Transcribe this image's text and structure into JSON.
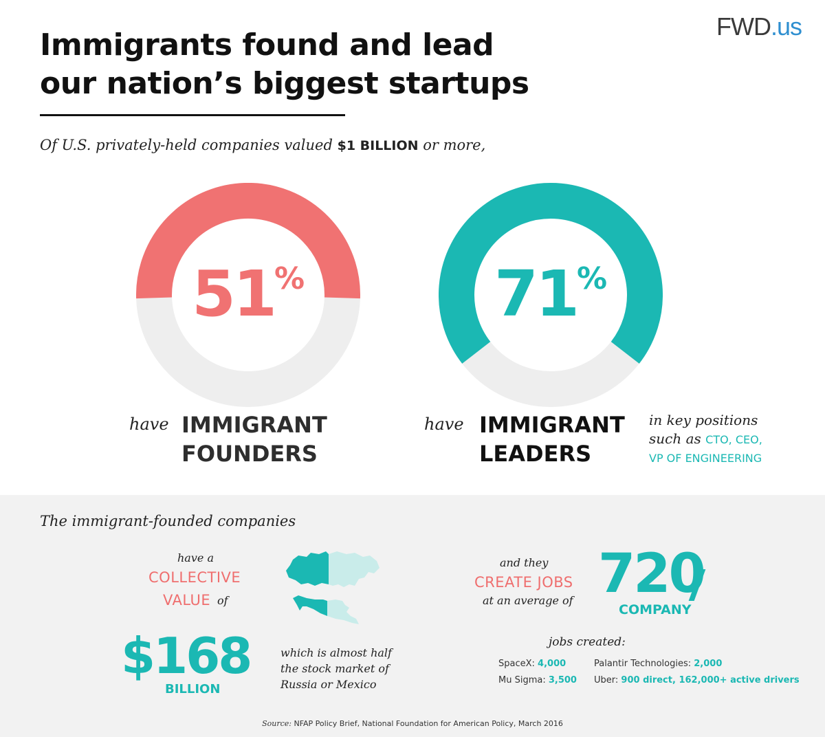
{
  "logo": {
    "brand": "FWD",
    "suffix": ".us"
  },
  "title": {
    "line1": "Immigrants found and lead",
    "line2": "our nation’s biggest startups"
  },
  "intro": {
    "prefix": "Of U.S. privately-held companies valued ",
    "highlight": "$1 BILLION",
    "suffix": " or more,"
  },
  "colors": {
    "coral": "#f07272",
    "teal": "#1bb8b3",
    "track": "#eeeeee"
  },
  "chart_data": [
    {
      "type": "pie",
      "subtype": "donut",
      "value": 51,
      "unit": "%",
      "max": 100,
      "color": "#f07272",
      "label": {
        "prefix": "have",
        "line1": "IMMIGRANT",
        "line2": "FOUNDERS"
      }
    },
    {
      "type": "pie",
      "subtype": "donut",
      "value": 71,
      "unit": "%",
      "max": 100,
      "color": "#1bb8b3",
      "label": {
        "prefix": "have",
        "line1": "IMMIGRANT",
        "line2": "LEADERS"
      },
      "note": {
        "line1": "in key positions",
        "line2_prefix": "such as ",
        "line2_caps": "CTO, CEO,",
        "line3_caps": "VP OF ENGINEERING"
      }
    }
  ],
  "bottom": {
    "intro": "The immigrant-founded companies",
    "value": {
      "have_a": "have a",
      "collective": "COLLECTIVE",
      "value_word": "VALUE",
      "of": "of",
      "amount": "$168",
      "unit": "BILLION",
      "compare_line1": "which is almost half",
      "compare_line2": "the stock market of",
      "compare_line3": "Russia or Mexico"
    },
    "jobs": {
      "and_they": "and they",
      "create_jobs": "CREATE JOBS",
      "at_average": "at an average of",
      "number": "720",
      "per": "COMPANY",
      "jobs_created": "jobs created:",
      "companies": [
        {
          "name": "SpaceX:",
          "value": "4,000"
        },
        {
          "name": "Mu Sigma:",
          "value": "3,500"
        },
        {
          "name": "Palantir Technologies:",
          "value": "2,000"
        },
        {
          "name": "Uber:",
          "value": "900 direct, 162,000+ active drivers"
        }
      ]
    }
  },
  "source": {
    "label": "Source:",
    "text": " NFAP Policy Brief, National Foundation for American Policy, March 2016"
  }
}
